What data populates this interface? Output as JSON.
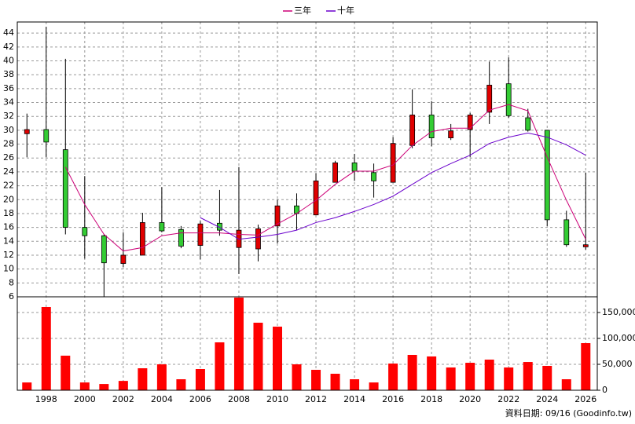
{
  "chart_data": [
    {
      "type": "candlestick",
      "x": [
        1997,
        1998,
        1999,
        2000,
        2001,
        2002,
        2003,
        2004,
        2005,
        2006,
        2007,
        2008,
        2009,
        2010,
        2011,
        2012,
        2013,
        2014,
        2015,
        2016,
        2017,
        2018,
        2019,
        2020,
        2021,
        2022,
        2023,
        2024,
        2025,
        2026
      ],
      "open": [
        29.5,
        30.1,
        27.2,
        16.0,
        14.8,
        10.8,
        12.0,
        16.7,
        15.7,
        13.4,
        16.6,
        13.1,
        12.9,
        16.2,
        19.1,
        17.8,
        22.5,
        25.3,
        23.9,
        22.5,
        27.8,
        32.2,
        28.9,
        30.1,
        32.6,
        36.7,
        31.8,
        30.0,
        17.1,
        13.2
      ],
      "high": [
        32.4,
        44.9,
        40.3,
        23.4,
        15.0,
        15.3,
        18.1,
        21.8,
        16.2,
        16.9,
        21.4,
        24.7,
        16.4,
        20.0,
        20.9,
        23.8,
        25.6,
        26.6,
        25.2,
        29.0,
        35.9,
        34.2,
        30.9,
        32.5,
        39.9,
        40.5,
        33.1,
        30.0,
        18.4,
        23.9
      ],
      "low": [
        26.1,
        26.1,
        15.0,
        11.5,
        6.0,
        10.3,
        12.0,
        15.3,
        13.0,
        11.4,
        14.8,
        9.3,
        11.1,
        13.7,
        15.6,
        17.8,
        22.5,
        22.7,
        20.3,
        22.5,
        27.4,
        27.7,
        28.6,
        26.1,
        30.9,
        31.8,
        29.8,
        16.2,
        13.2,
        12.8
      ],
      "close": [
        30.1,
        28.3,
        16.0,
        14.8,
        10.9,
        12.0,
        16.7,
        15.5,
        13.3,
        16.5,
        15.6,
        15.6,
        15.8,
        19.1,
        18.0,
        22.7,
        25.3,
        24.1,
        22.7,
        28.1,
        32.2,
        28.9,
        29.9,
        32.2,
        36.5,
        32.1,
        30.0,
        17.1,
        13.5,
        13.5
      ],
      "up_color": "#e00000",
      "down_color": "#33cc33",
      "series": [
        {
          "name": "三年",
          "color": "#cc0077",
          "values": [
            null,
            null,
            24.7,
            19.3,
            15.0,
            12.6,
            13.1,
            14.8,
            15.2,
            15.2,
            15.2,
            15.0,
            14.9,
            16.5,
            18.0,
            19.9,
            22.2,
            24.1,
            24.1,
            25.0,
            27.8,
            29.8,
            30.3,
            30.3,
            32.9,
            33.7,
            32.8,
            26.1,
            19.9,
            14.3
          ]
        },
        {
          "name": "十年",
          "color": "#6a00cc",
          "values": [
            null,
            null,
            null,
            null,
            null,
            null,
            null,
            null,
            null,
            17.4,
            16.0,
            14.3,
            14.6,
            15.0,
            15.6,
            16.7,
            17.4,
            18.3,
            19.3,
            20.5,
            22.2,
            23.9,
            25.2,
            26.4,
            28.1,
            29.0,
            29.6,
            29.0,
            27.9,
            26.4
          ]
        }
      ],
      "xlim": [
        1996.5,
        2026.6
      ],
      "ylim": [
        6,
        45.6
      ],
      "yticks": [
        6,
        8,
        10,
        12,
        14,
        16,
        18,
        20,
        22,
        24,
        26,
        28,
        30,
        32,
        34,
        36,
        38,
        40,
        42,
        44
      ],
      "grid": true
    },
    {
      "type": "bar",
      "x": [
        1997,
        1998,
        1999,
        2000,
        2001,
        2002,
        2003,
        2004,
        2005,
        2006,
        2007,
        2008,
        2009,
        2010,
        2011,
        2012,
        2013,
        2014,
        2015,
        2016,
        2017,
        2018,
        2019,
        2020,
        2021,
        2022,
        2023,
        2024,
        2025,
        2026
      ],
      "values": [
        15000,
        160600,
        66700,
        15000,
        12000,
        18000,
        42400,
        50000,
        21200,
        40900,
        92400,
        178800,
        130300,
        122700,
        50000,
        39400,
        31800,
        21200,
        15000,
        51500,
        68200,
        65200,
        43900,
        53000,
        59100,
        43900,
        54500,
        47000,
        21200,
        90900
      ],
      "color": "#ff0000",
      "xlim": [
        1996.5,
        2026.6
      ],
      "ylim": [
        0,
        180300
      ],
      "yticks": [
        0,
        {
          "value": 50000,
          "label": "50,000"
        },
        {
          "value": 100000,
          "label": "100,000"
        },
        {
          "value": 150000,
          "label": "150,000"
        }
      ],
      "xticks": [
        1998,
        2000,
        2002,
        2004,
        2006,
        2008,
        2010,
        2012,
        2014,
        2016,
        2018,
        2020,
        2022,
        2024,
        2026
      ],
      "source": "資料日期: 09/16  (Goodinfo.tw)",
      "grid": true
    }
  ]
}
